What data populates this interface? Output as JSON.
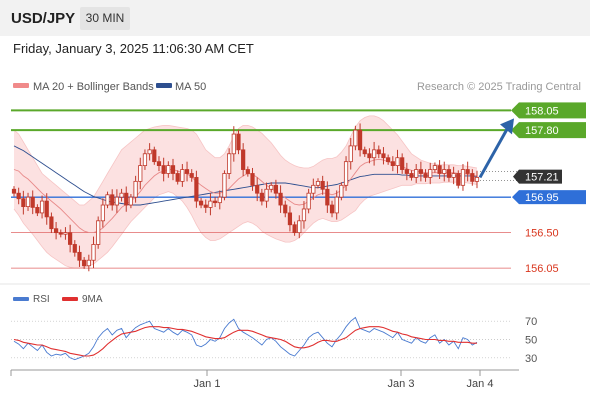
{
  "header": {
    "pair": "USD/JPY",
    "timeframe": "30 MIN",
    "datetime": "Friday, January 3, 2025 11:06:30 AM CET"
  },
  "legend": {
    "ma20": "MA 20 + Bollinger Bands",
    "ma50": "MA 50",
    "credit": "Research © 2025 Trading Central"
  },
  "colors": {
    "resistance": "#5aa82a",
    "support_line": "#e06666",
    "pivot": "#2f6fd8",
    "arrow": "#2d63a8",
    "ma20": "#e88a8a",
    "ma50": "#2e4f8f",
    "band_fill": "#fbdcdc",
    "candle": "#c0392b",
    "rsi": "#4a7bd0",
    "rsi_ma": "#e03030",
    "price_tag": "#333333"
  },
  "chart_data": [
    {
      "type": "candlestick",
      "title": "",
      "y_range": [
        155.95,
        158.22
      ],
      "x_ticks": [
        "Jan 1",
        "Jan 3",
        "Jan 4"
      ],
      "series": [
        {
          "name": "MA 20 + Bollinger Bands"
        },
        {
          "name": "MA 50"
        }
      ],
      "close": [
        157.0,
        156.93,
        156.83,
        156.95,
        156.82,
        156.75,
        156.9,
        156.7,
        156.55,
        156.5,
        156.48,
        156.5,
        156.35,
        156.25,
        156.15,
        156.08,
        156.15,
        156.35,
        156.65,
        156.85,
        156.98,
        156.85,
        156.95,
        157.0,
        156.85,
        156.95,
        157.15,
        157.35,
        157.5,
        157.55,
        157.4,
        157.35,
        157.25,
        157.35,
        157.25,
        157.15,
        157.3,
        157.25,
        157.2,
        156.9,
        156.85,
        156.82,
        156.9,
        156.88,
        156.95,
        157.25,
        157.5,
        157.75,
        157.55,
        157.3,
        157.25,
        157.1,
        157.0,
        156.9,
        157.05,
        157.1,
        157.0,
        156.85,
        156.75,
        156.6,
        156.5,
        156.65,
        156.8,
        157.0,
        157.1,
        157.15,
        157.05,
        156.85,
        156.75,
        156.95,
        157.1,
        157.4,
        157.6,
        157.8,
        157.55,
        157.5,
        157.45,
        157.55,
        157.5,
        157.45,
        157.4,
        157.35,
        157.45,
        157.3,
        157.25,
        157.2,
        157.3,
        157.25,
        157.2,
        157.3,
        157.35,
        157.25,
        157.3,
        157.2,
        157.25,
        157.1,
        157.3,
        157.25,
        157.15,
        157.2
      ],
      "ma20": [
        157.3,
        157.28,
        157.22,
        157.18,
        157.12,
        157.06,
        157.0,
        156.95,
        156.9,
        156.85,
        156.8,
        156.74,
        156.68,
        156.62,
        156.56,
        156.52,
        156.5,
        156.5,
        156.52,
        156.56,
        156.62,
        156.68,
        156.75,
        156.82,
        156.86,
        156.9,
        156.95,
        157.02,
        157.1,
        157.16,
        157.22,
        157.26,
        157.28,
        157.3,
        157.3,
        157.28,
        157.26,
        157.25,
        157.2,
        157.15,
        157.1,
        157.06,
        157.02,
        157.0,
        157.0,
        157.02,
        157.06,
        157.12,
        157.18,
        157.22,
        157.25,
        157.24,
        157.2,
        157.15,
        157.1,
        157.06,
        157.02,
        156.98,
        156.94,
        156.9,
        156.86,
        156.85,
        156.86,
        156.9,
        156.94,
        156.98,
        157.0,
        157.0,
        156.98,
        157.0,
        157.04,
        157.1,
        157.18,
        157.26,
        157.34,
        157.38,
        157.4,
        157.42,
        157.43,
        157.42,
        157.4,
        157.38,
        157.36,
        157.34,
        157.31,
        157.29,
        157.28,
        157.27,
        157.26,
        157.26,
        157.26,
        157.26,
        157.26,
        157.26,
        157.26,
        157.25,
        157.25,
        157.24,
        157.23,
        157.22
      ],
      "bb_upper": [
        157.8,
        157.75,
        157.65,
        157.55,
        157.45,
        157.35,
        157.25,
        157.2,
        157.15,
        157.1,
        157.05,
        157.0,
        156.95,
        156.9,
        156.85,
        156.85,
        156.9,
        156.95,
        157.05,
        157.15,
        157.25,
        157.35,
        157.45,
        157.55,
        157.6,
        157.65,
        157.7,
        157.75,
        157.8,
        157.82,
        157.84,
        157.85,
        157.86,
        157.86,
        157.85,
        157.84,
        157.83,
        157.82,
        157.8,
        157.75,
        157.65,
        157.55,
        157.5,
        157.45,
        157.45,
        157.5,
        157.6,
        157.72,
        157.82,
        157.86,
        157.86,
        157.84,
        157.8,
        157.76,
        157.7,
        157.64,
        157.56,
        157.48,
        157.42,
        157.38,
        157.35,
        157.33,
        157.32,
        157.32,
        157.34,
        157.38,
        157.42,
        157.44,
        157.44,
        157.46,
        157.52,
        157.6,
        157.72,
        157.84,
        157.92,
        157.96,
        157.98,
        157.98,
        157.96,
        157.92,
        157.86,
        157.8,
        157.74,
        157.66,
        157.58,
        157.5,
        157.46,
        157.42,
        157.4,
        157.38,
        157.37,
        157.36,
        157.36,
        157.36,
        157.36,
        157.35,
        157.35,
        157.34,
        157.33,
        157.32
      ],
      "bb_lower": [
        156.8,
        156.72,
        156.62,
        156.55,
        156.48,
        156.4,
        156.32,
        156.25,
        156.2,
        156.16,
        156.12,
        156.08,
        156.06,
        156.05,
        156.05,
        156.06,
        156.08,
        156.1,
        156.15,
        156.2,
        156.25,
        156.32,
        156.4,
        156.48,
        156.56,
        156.64,
        156.7,
        156.76,
        156.82,
        156.88,
        156.94,
        156.98,
        157.0,
        157.02,
        157.0,
        156.95,
        156.9,
        156.82,
        156.72,
        156.6,
        156.5,
        156.44,
        156.4,
        156.4,
        156.42,
        156.46,
        156.5,
        156.54,
        156.58,
        156.62,
        156.64,
        156.62,
        156.58,
        156.52,
        156.48,
        156.45,
        156.42,
        156.4,
        156.38,
        156.38,
        156.4,
        156.44,
        156.5,
        156.56,
        156.62,
        156.66,
        156.68,
        156.66,
        156.64,
        156.64,
        156.66,
        156.7,
        156.74,
        156.78,
        156.86,
        156.92,
        156.96,
        156.98,
        157.0,
        157.02,
        157.04,
        157.06,
        157.08,
        157.1,
        157.1,
        157.1,
        157.12,
        157.12,
        157.12,
        157.13,
        157.13,
        157.13,
        157.14,
        157.14,
        157.14,
        157.14,
        157.14,
        157.13,
        157.12,
        157.11
      ],
      "ma50": [
        157.6,
        157.57,
        157.54,
        157.5,
        157.46,
        157.42,
        157.38,
        157.34,
        157.3,
        157.26,
        157.22,
        157.18,
        157.14,
        157.1,
        157.06,
        157.02,
        156.99,
        156.96,
        156.94,
        156.92,
        156.9,
        156.89,
        156.88,
        156.87,
        156.86,
        156.85,
        156.85,
        156.85,
        156.86,
        156.87,
        156.88,
        156.89,
        156.9,
        156.91,
        156.92,
        156.93,
        156.94,
        156.95,
        156.96,
        156.97,
        156.98,
        156.99,
        157.0,
        157.01,
        157.02,
        157.03,
        157.04,
        157.05,
        157.06,
        157.07,
        157.08,
        157.09,
        157.1,
        157.11,
        157.12,
        157.13,
        157.13,
        157.13,
        157.13,
        157.12,
        157.11,
        157.1,
        157.09,
        157.08,
        157.07,
        157.07,
        157.08,
        157.09,
        157.1,
        157.11,
        157.13,
        157.15,
        157.17,
        157.19,
        157.21,
        157.22,
        157.23,
        157.24,
        157.24,
        157.24,
        157.24,
        157.24,
        157.24,
        157.23,
        157.23,
        157.22,
        157.22,
        157.22,
        157.22,
        157.22,
        157.22,
        157.22,
        157.22,
        157.22,
        157.22,
        157.22,
        157.22,
        157.22,
        157.22,
        157.21
      ],
      "levels": [
        {
          "label": "158.05",
          "value": 158.05,
          "kind": "resistance"
        },
        {
          "label": "157.80",
          "value": 157.8,
          "kind": "resistance"
        },
        {
          "label": "157.21",
          "value": 157.21,
          "kind": "last"
        },
        {
          "label": "156.95",
          "value": 156.95,
          "kind": "pivot"
        },
        {
          "label": "156.50",
          "value": 156.5,
          "kind": "support"
        },
        {
          "label": "156.05",
          "value": 156.05,
          "kind": "support"
        }
      ],
      "forecast_target": 158.05
    },
    {
      "type": "line",
      "title": "",
      "series": [
        {
          "name": "RSI"
        },
        {
          "name": "9MA"
        }
      ],
      "y_range": [
        20,
        80
      ],
      "y_ticks": [
        "70",
        "50",
        "30"
      ],
      "y_tick_values": [
        70,
        50,
        30
      ],
      "rsi": [
        48,
        45,
        40,
        46,
        42,
        38,
        44,
        36,
        32,
        34,
        33,
        35,
        30,
        28,
        30,
        32,
        35,
        42,
        52,
        58,
        62,
        55,
        60,
        62,
        52,
        58,
        63,
        66,
        68,
        70,
        62,
        60,
        58,
        62,
        58,
        55,
        60,
        58,
        55,
        44,
        42,
        45,
        50,
        48,
        52,
        62,
        68,
        72,
        62,
        58,
        55,
        52,
        48,
        44,
        50,
        52,
        48,
        42,
        38,
        34,
        32,
        38,
        44,
        52,
        56,
        58,
        52,
        46,
        42,
        50,
        56,
        64,
        70,
        74,
        62,
        60,
        58,
        62,
        60,
        58,
        55,
        52,
        58,
        50,
        48,
        46,
        52,
        48,
        46,
        52,
        55,
        46,
        50,
        44,
        48,
        40,
        52,
        50,
        44,
        47
      ],
      "rsi_ma": [
        50,
        49,
        47,
        46,
        45,
        44,
        44,
        42,
        40,
        39,
        38,
        37,
        35,
        34,
        33,
        32,
        32,
        33,
        36,
        40,
        45,
        49,
        53,
        56,
        57,
        58,
        59,
        61,
        63,
        64,
        64,
        64,
        63,
        63,
        62,
        61,
        61,
        60,
        59,
        57,
        55,
        53,
        52,
        51,
        51,
        52,
        55,
        58,
        60,
        60,
        60,
        59,
        57,
        55,
        53,
        52,
        51,
        50,
        48,
        45,
        42,
        41,
        41,
        42,
        44,
        47,
        49,
        49,
        48,
        48,
        50,
        52,
        56,
        60,
        62,
        63,
        64,
        64,
        64,
        63,
        61,
        59,
        58,
        56,
        55,
        53,
        52,
        51,
        50,
        50,
        50,
        49,
        49,
        48,
        48,
        47,
        47,
        47,
        46,
        46
      ]
    }
  ]
}
